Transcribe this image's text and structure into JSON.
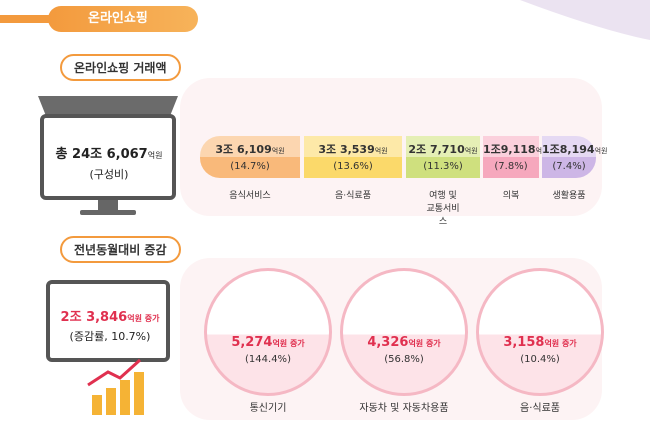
{
  "header": {
    "title": "온라인쇼핑"
  },
  "transaction": {
    "label": "온라인쇼핑 거래액",
    "total": {
      "amount": "총 24조 6,067",
      "unit": "억원",
      "note": "(구성비)"
    },
    "items": [
      {
        "amount": "3조 6,109",
        "unit": "억원",
        "share": "(14.7%)",
        "name": "음식서비스"
      },
      {
        "amount": "3조 3,539",
        "unit": "억원",
        "share": "(13.6%)",
        "name": "음·식료품"
      },
      {
        "amount": "2조 7,710",
        "unit": "억원",
        "share": "(11.3%)",
        "name": "여행 및 교통서비스"
      },
      {
        "amount": "1조9,118",
        "unit": "억원",
        "share": "(7.8%)",
        "name": "의복"
      },
      {
        "amount": "1조8,194",
        "unit": "억원",
        "share": "(7.4%)",
        "name": "생활용품"
      }
    ]
  },
  "change": {
    "label": "전년동월대비 증감",
    "total": {
      "amount": "2조 3,846",
      "unit": "억원 증가",
      "note": "(증감률, 10.7%)"
    },
    "items": [
      {
        "amount": "5,274",
        "unit": "억원 증가",
        "rate": "(144.4%)",
        "name": "통신기기"
      },
      {
        "amount": "4,326",
        "unit": "억원 증가",
        "rate": "(56.8%)",
        "name": "자동차 및 자동차용품"
      },
      {
        "amount": "3,158",
        "unit": "억원 증가",
        "rate": "(10.4%)",
        "name": "음·식료품"
      }
    ]
  }
}
